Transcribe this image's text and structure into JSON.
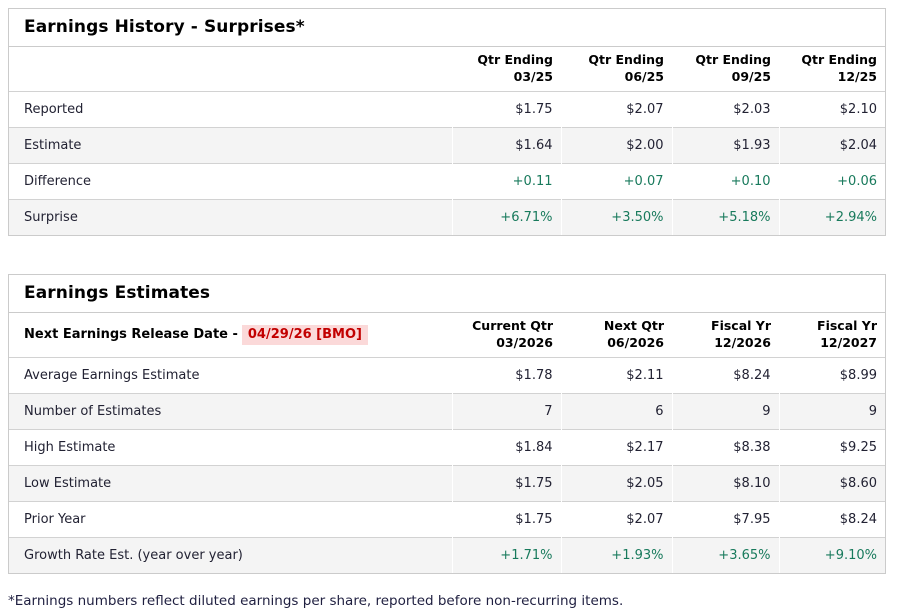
{
  "colors": {
    "positive_green": "#187a5c",
    "alert_red_text": "#c20000",
    "alert_red_background": "#fbd9d9",
    "alt_row_background": "#f4f4f4",
    "table_border": "#cbcbcb"
  },
  "earnings_history": {
    "title": "Earnings History - Surprises*",
    "columns": [
      {
        "line1": "Qtr Ending",
        "line2": "03/25"
      },
      {
        "line1": "Qtr Ending",
        "line2": "06/25"
      },
      {
        "line1": "Qtr Ending",
        "line2": "09/25"
      },
      {
        "line1": "Qtr Ending",
        "line2": "12/25"
      }
    ],
    "rows": [
      {
        "label": "Reported",
        "values": [
          "$1.75",
          "$2.07",
          "$2.03",
          "$2.10"
        ]
      },
      {
        "label": "Estimate",
        "values": [
          "$1.64",
          "$2.00",
          "$1.93",
          "$2.04"
        ]
      },
      {
        "label": "Difference",
        "values": [
          "+0.11",
          "+0.07",
          "+0.10",
          "+0.06"
        ]
      },
      {
        "label": "Surprise",
        "values": [
          "+6.71%",
          "+3.50%",
          "+5.18%",
          "+2.94%"
        ]
      }
    ]
  },
  "earnings_estimates": {
    "title": "Earnings Estimates",
    "next_release_label": "Next Earnings Release Date -",
    "next_release_date": "04/29/26 [BMO]",
    "columns": [
      {
        "line1": "Current Qtr",
        "line2": "03/2026"
      },
      {
        "line1": "Next Qtr",
        "line2": "06/2026"
      },
      {
        "line1": "Fiscal Yr",
        "line2": "12/2026"
      },
      {
        "line1": "Fiscal Yr",
        "line2": "12/2027"
      }
    ],
    "rows": [
      {
        "label": "Average Earnings Estimate",
        "values": [
          "$1.78",
          "$2.11",
          "$8.24",
          "$8.99"
        ]
      },
      {
        "label": "Number of Estimates",
        "values": [
          "7",
          "6",
          "9",
          "9"
        ]
      },
      {
        "label": "High Estimate",
        "values": [
          "$1.84",
          "$2.17",
          "$8.38",
          "$9.25"
        ]
      },
      {
        "label": "Low Estimate",
        "values": [
          "$1.75",
          "$2.05",
          "$8.10",
          "$8.60"
        ]
      },
      {
        "label": "Prior Year",
        "values": [
          "$1.75",
          "$2.07",
          "$7.95",
          "$8.24"
        ]
      },
      {
        "label": "Growth Rate Est. (year over year)",
        "values": [
          "+1.71%",
          "+1.93%",
          "+3.65%",
          "+9.10%"
        ]
      }
    ]
  },
  "footnote": "*Earnings numbers reflect diluted earnings per share, reported before non-recurring items."
}
